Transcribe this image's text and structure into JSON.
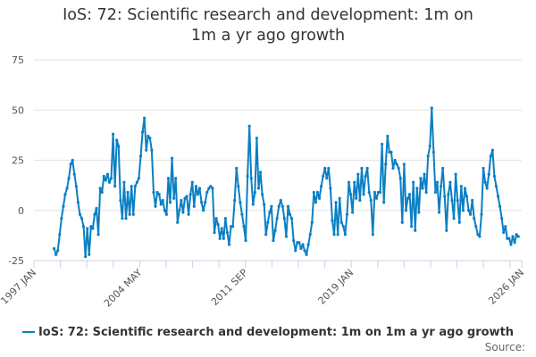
{
  "chart_data": {
    "type": "line",
    "title": "IoS: 72: Scientific research and development: 1m on 1m a yr ago growth",
    "xlabel": "",
    "ylabel": "",
    "ylim": [
      -25,
      75
    ],
    "yticks": [
      75,
      50,
      25,
      0,
      -25
    ],
    "xlim": [
      1997.0,
      2026.0
    ],
    "xtick_labels": [
      "1997 JAN",
      "2004 MAY",
      "2011 SEP",
      "2019 JAN",
      "2026 JAN"
    ],
    "grid": true,
    "legend_position": "bottom",
    "series": [
      {
        "name": "IoS: 72: Scientific research and development: 1m on 1m a yr ago growth",
        "color": "#0a7fc4",
        "x_start": 1998.2,
        "x_end": 2025.8,
        "values": [
          -19,
          -22,
          -20,
          -12,
          -4,
          2,
          8,
          11,
          16,
          23,
          25,
          18,
          12,
          4,
          -2,
          -4,
          -8,
          -23,
          -9,
          -22,
          -8,
          -9,
          -2,
          1,
          -12,
          11,
          9,
          17,
          15,
          18,
          14,
          16,
          38,
          12,
          35,
          32,
          5,
          -4,
          14,
          -4,
          9,
          -2,
          12,
          -2,
          12,
          14,
          16,
          27,
          39,
          46,
          30,
          37,
          36,
          30,
          9,
          2,
          9,
          8,
          3,
          5,
          0,
          -2,
          16,
          4,
          26,
          6,
          16,
          -6,
          0,
          5,
          -1,
          6,
          7,
          -2,
          8,
          14,
          2,
          12,
          8,
          11,
          4,
          0,
          4,
          9,
          11,
          12,
          11,
          -11,
          -4,
          -7,
          -14,
          -9,
          -14,
          -4,
          -11,
          -17,
          -8,
          -8,
          5,
          21,
          12,
          4,
          -2,
          -8,
          -15,
          17,
          42,
          16,
          3,
          9,
          36,
          11,
          19,
          8,
          3,
          -12,
          -6,
          -1,
          2,
          -15,
          -10,
          -4,
          2,
          5,
          2,
          -4,
          -13,
          2,
          -2,
          -4,
          -15,
          -20,
          -16,
          -16,
          -19,
          -17,
          -20,
          -22,
          -17,
          -12,
          -6,
          9,
          4,
          9,
          6,
          12,
          17,
          21,
          16,
          21,
          11,
          -5,
          -12,
          4,
          -12,
          6,
          -6,
          -8,
          -12,
          -2,
          14,
          8,
          -1,
          14,
          6,
          18,
          5,
          21,
          8,
          17,
          21,
          9,
          5,
          -12,
          9,
          6,
          9,
          9,
          33,
          4,
          23,
          37,
          29,
          29,
          21,
          25,
          23,
          21,
          16,
          -6,
          23,
          0,
          6,
          8,
          -8,
          14,
          -10,
          11,
          -1,
          16,
          11,
          18,
          9,
          27,
          32,
          51,
          29,
          9,
          14,
          -1,
          12,
          21,
          7,
          -10,
          8,
          14,
          5,
          -4,
          18,
          5,
          -6,
          12,
          0,
          11,
          7,
          0,
          -2,
          5,
          -4,
          -8,
          -12,
          -13,
          -2,
          21,
          14,
          11,
          18,
          27,
          30,
          17,
          12,
          7,
          2,
          -4,
          -11,
          -8,
          -14,
          -14,
          -17,
          -13,
          -16,
          -12,
          -13
        ]
      }
    ]
  },
  "legend": {
    "label": "IoS: 72: Scientific research and development: 1m on 1m a yr ago growth"
  },
  "source": {
    "label": "Source:"
  }
}
